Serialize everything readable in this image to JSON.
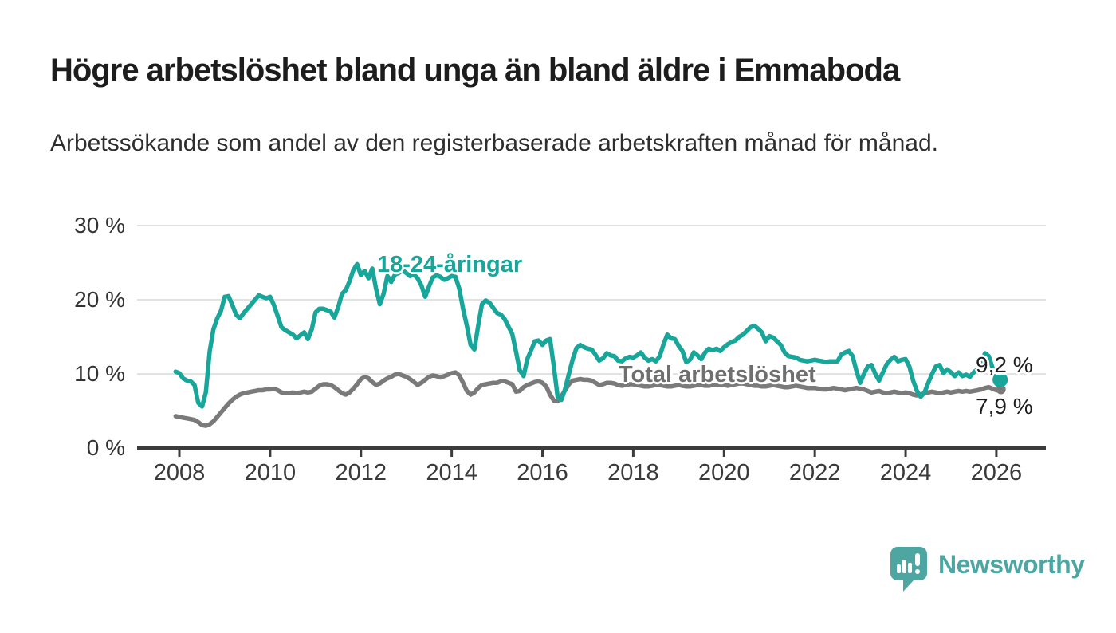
{
  "header": {
    "title": "Högre arbetslöshet bland unga än bland äldre i Emmaboda",
    "subtitle": "Arbetssökande som andel av den registerbaserade arbetskraften månad för månad."
  },
  "chart_data": {
    "type": "line",
    "title": "Högre arbetslöshet bland unga än bland äldre i Emmaboda",
    "subtitle": "Arbetssökande som andel av den registerbaserade arbetskraften månad för månad.",
    "unit": "%",
    "grid": "horizontal",
    "legend_position": "inline-labels",
    "ylim": [
      0,
      30
    ],
    "xlim": [
      2007.9,
      2027.1
    ],
    "y_ticks": [
      {
        "value": 0,
        "label": "0 %"
      },
      {
        "value": 10,
        "label": "10 %"
      },
      {
        "value": 20,
        "label": "20 %"
      },
      {
        "value": 30,
        "label": "30 %"
      }
    ],
    "x_ticks": [
      2008,
      2010,
      2012,
      2014,
      2016,
      2018,
      2020,
      2022,
      2024,
      2026
    ],
    "frequency": "monthly",
    "series": [
      {
        "name": "Total arbetslöshet",
        "color": "#7a7a7a",
        "label_color": "#6f6f6f",
        "end_label": "7,9 %",
        "end_value": 7.9,
        "start_month": "2007-12",
        "values": [
          4.3,
          4.2,
          4.1,
          4.0,
          3.9,
          3.8,
          3.5,
          3.1,
          3.0,
          3.2,
          3.6,
          4.2,
          4.8,
          5.4,
          6.0,
          6.5,
          6.9,
          7.2,
          7.4,
          7.5,
          7.6,
          7.7,
          7.8,
          7.8,
          7.9,
          7.9,
          8.0,
          7.8,
          7.5,
          7.4,
          7.4,
          7.5,
          7.4,
          7.5,
          7.6,
          7.5,
          7.6,
          8.0,
          8.4,
          8.6,
          8.6,
          8.5,
          8.2,
          7.8,
          7.4,
          7.2,
          7.5,
          8.0,
          8.6,
          9.3,
          9.6,
          9.4,
          8.9,
          8.5,
          8.7,
          9.1,
          9.4,
          9.6,
          9.9,
          10.0,
          9.8,
          9.6,
          9.3,
          8.9,
          8.5,
          8.8,
          9.2,
          9.6,
          9.8,
          9.7,
          9.5,
          9.7,
          9.9,
          10.1,
          10.2,
          9.8,
          8.8,
          7.7,
          7.2,
          7.5,
          8.1,
          8.5,
          8.6,
          8.7,
          8.8,
          8.8,
          9.0,
          9.0,
          8.8,
          8.6,
          7.6,
          7.7,
          8.2,
          8.5,
          8.7,
          8.9,
          9.0,
          8.8,
          8.3,
          7.2,
          6.4,
          6.3,
          7.0,
          7.8,
          8.6,
          9.1,
          9.2,
          9.3,
          9.2,
          9.2,
          9.1,
          8.8,
          8.5,
          8.6,
          8.8,
          8.8,
          8.7,
          8.5,
          8.4,
          8.5,
          8.6,
          8.6,
          8.5,
          8.4,
          8.3,
          8.3,
          8.4,
          8.5,
          8.5,
          8.4,
          8.3,
          8.3,
          8.4,
          8.5,
          8.4,
          8.3,
          8.3,
          8.4,
          8.5,
          8.5,
          8.4,
          8.4,
          8.5,
          8.5,
          8.5,
          8.5,
          8.4,
          8.5,
          8.6,
          8.7,
          8.7,
          8.6,
          8.5,
          8.4,
          8.4,
          8.3,
          8.3,
          8.4,
          8.5,
          8.4,
          8.3,
          8.2,
          8.2,
          8.3,
          8.4,
          8.3,
          8.2,
          8.1,
          8.1,
          8.1,
          8.0,
          7.9,
          7.9,
          8.0,
          8.1,
          8.0,
          7.9,
          7.8,
          7.9,
          8.0,
          8.1,
          8.0,
          7.9,
          7.7,
          7.5,
          7.6,
          7.7,
          7.5,
          7.4,
          7.5,
          7.6,
          7.5,
          7.4,
          7.5,
          7.4,
          7.2,
          7.1,
          7.2,
          7.4,
          7.5,
          7.6,
          7.5,
          7.4,
          7.5,
          7.6,
          7.5,
          7.6,
          7.7,
          7.6,
          7.7,
          7.6,
          7.7,
          7.8,
          7.9,
          8.1,
          8.2,
          8.0,
          7.8,
          7.9
        ]
      },
      {
        "name": "18-24-åringar",
        "color": "#18a69b",
        "label_color": "#18a69b",
        "end_label": "9,2 %",
        "end_value": 9.2,
        "start_month": "2007-12",
        "values": [
          10.3,
          10.1,
          9.4,
          9.1,
          9.0,
          8.5,
          6.1,
          5.6,
          7.5,
          13.0,
          16.0,
          17.5,
          18.5,
          20.4,
          20.5,
          19.3,
          18.0,
          17.5,
          18.2,
          18.8,
          19.4,
          20.0,
          20.6,
          20.4,
          20.2,
          20.4,
          19.3,
          17.8,
          16.3,
          15.9,
          15.6,
          15.3,
          14.8,
          15.2,
          15.6,
          14.7,
          16.0,
          18.3,
          18.8,
          18.8,
          18.6,
          18.4,
          17.6,
          19.0,
          20.8,
          21.3,
          22.5,
          24.0,
          24.8,
          23.3,
          23.9,
          22.9,
          24.2,
          21.5,
          19.4,
          20.8,
          23.2,
          22.4,
          23.4,
          23.6,
          24.0,
          23.6,
          23.2,
          23.4,
          22.9,
          21.9,
          20.4,
          21.8,
          23.0,
          23.3,
          23.1,
          22.7,
          22.9,
          23.2,
          23.1,
          21.5,
          18.8,
          16.5,
          13.9,
          13.3,
          16.5,
          19.4,
          19.9,
          19.6,
          18.9,
          18.2,
          18.0,
          17.4,
          16.4,
          15.4,
          13.0,
          10.5,
          9.7,
          12.0,
          13.2,
          14.4,
          14.5,
          13.9,
          14.5,
          14.7,
          11.0,
          6.9,
          6.5,
          8.0,
          10.0,
          12.0,
          13.5,
          13.9,
          13.6,
          13.4,
          13.3,
          12.6,
          11.8,
          12.1,
          12.8,
          12.5,
          12.4,
          11.8,
          11.7,
          12.1,
          12.3,
          12.2,
          12.5,
          12.9,
          12.2,
          11.8,
          12.0,
          11.7,
          12.4,
          14.0,
          15.3,
          14.8,
          14.7,
          13.8,
          13.1,
          11.6,
          11.9,
          12.9,
          12.5,
          12.0,
          12.9,
          13.4,
          13.2,
          13.4,
          13.1,
          13.6,
          14.0,
          14.3,
          14.5,
          15.0,
          15.3,
          15.8,
          16.3,
          16.5,
          16.1,
          15.6,
          14.4,
          15.1,
          14.9,
          14.4,
          13.9,
          12.9,
          12.4,
          12.3,
          12.2,
          11.9,
          11.8,
          11.7,
          11.8,
          11.9,
          11.8,
          11.7,
          11.6,
          11.7,
          11.7,
          11.7,
          12.6,
          12.9,
          13.1,
          12.4,
          10.4,
          8.8,
          10.0,
          11.0,
          11.2,
          10.0,
          9.1,
          10.2,
          11.3,
          11.9,
          12.3,
          11.7,
          11.9,
          12.0,
          11.0,
          9.1,
          7.7,
          6.9,
          7.5,
          8.8,
          10.0,
          11.0,
          11.2,
          10.1,
          10.6,
          10.2,
          9.7,
          10.2,
          9.7,
          9.9,
          9.6,
          10.2,
          10.6,
          11.5,
          12.8,
          12.4,
          10.8,
          9.8,
          9.2
        ]
      }
    ],
    "axis_color": "#3c3c3c",
    "gridline_color": "#d9d9d9"
  },
  "branding": {
    "logo_text": "Newsworthy",
    "logo_icon": "bar-chart-speech-bubble-icon",
    "logo_color": "#4da6a2"
  }
}
